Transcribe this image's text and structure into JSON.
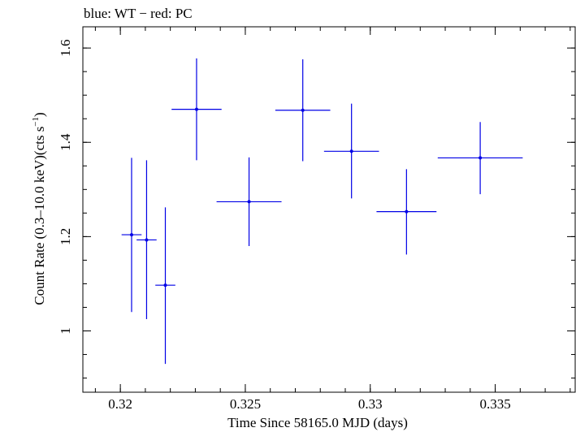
{
  "chart_data": {
    "type": "scatter",
    "title": "blue: WT − red: PC",
    "xlabel": "Time Since 58165.0 MJD (days)",
    "ylabel_main": "Count Rate (0.3–10.0 keV)(cts s",
    "ylabel_sup": "−1",
    "ylabel_end": ")",
    "xlim": [
      0.3185,
      0.3382
    ],
    "ylim": [
      0.87,
      1.645
    ],
    "xticks": [
      {
        "value": 0.32,
        "label": "0.32"
      },
      {
        "value": 0.325,
        "label": "0.325"
      },
      {
        "value": 0.33,
        "label": "0.33"
      },
      {
        "value": 0.335,
        "label": "0.335"
      }
    ],
    "yticks": [
      {
        "value": 1.0,
        "label": "1"
      },
      {
        "value": 1.2,
        "label": "1.2"
      },
      {
        "value": 1.4,
        "label": "1.4"
      },
      {
        "value": 1.6,
        "label": "1.6"
      }
    ],
    "series": [
      {
        "color": "#0000e6",
        "points": [
          {
            "x": 0.32045,
            "xlo": 0.32005,
            "xhi": 0.32085,
            "y": 1.204,
            "ylo": 1.04,
            "yhi": 1.367
          },
          {
            "x": 0.32105,
            "xlo": 0.32065,
            "xhi": 0.32145,
            "y": 1.193,
            "ylo": 1.025,
            "yhi": 1.362
          },
          {
            "x": 0.3218,
            "xlo": 0.3214,
            "xhi": 0.3222,
            "y": 1.097,
            "ylo": 0.93,
            "yhi": 1.262
          },
          {
            "x": 0.32305,
            "xlo": 0.32205,
            "xhi": 0.32405,
            "y": 1.47,
            "ylo": 1.362,
            "yhi": 1.578
          },
          {
            "x": 0.32515,
            "xlo": 0.32385,
            "xhi": 0.32645,
            "y": 1.274,
            "ylo": 1.18,
            "yhi": 1.368
          },
          {
            "x": 0.3273,
            "xlo": 0.3262,
            "xhi": 0.3284,
            "y": 1.468,
            "ylo": 1.36,
            "yhi": 1.576
          },
          {
            "x": 0.32925,
            "xlo": 0.32815,
            "xhi": 0.33035,
            "y": 1.381,
            "ylo": 1.281,
            "yhi": 1.482
          },
          {
            "x": 0.33145,
            "xlo": 0.33025,
            "xhi": 0.33265,
            "y": 1.253,
            "ylo": 1.162,
            "yhi": 1.343
          },
          {
            "x": 0.3344,
            "xlo": 0.3327,
            "xhi": 0.3361,
            "y": 1.367,
            "ylo": 1.29,
            "yhi": 1.443
          }
        ]
      }
    ]
  }
}
